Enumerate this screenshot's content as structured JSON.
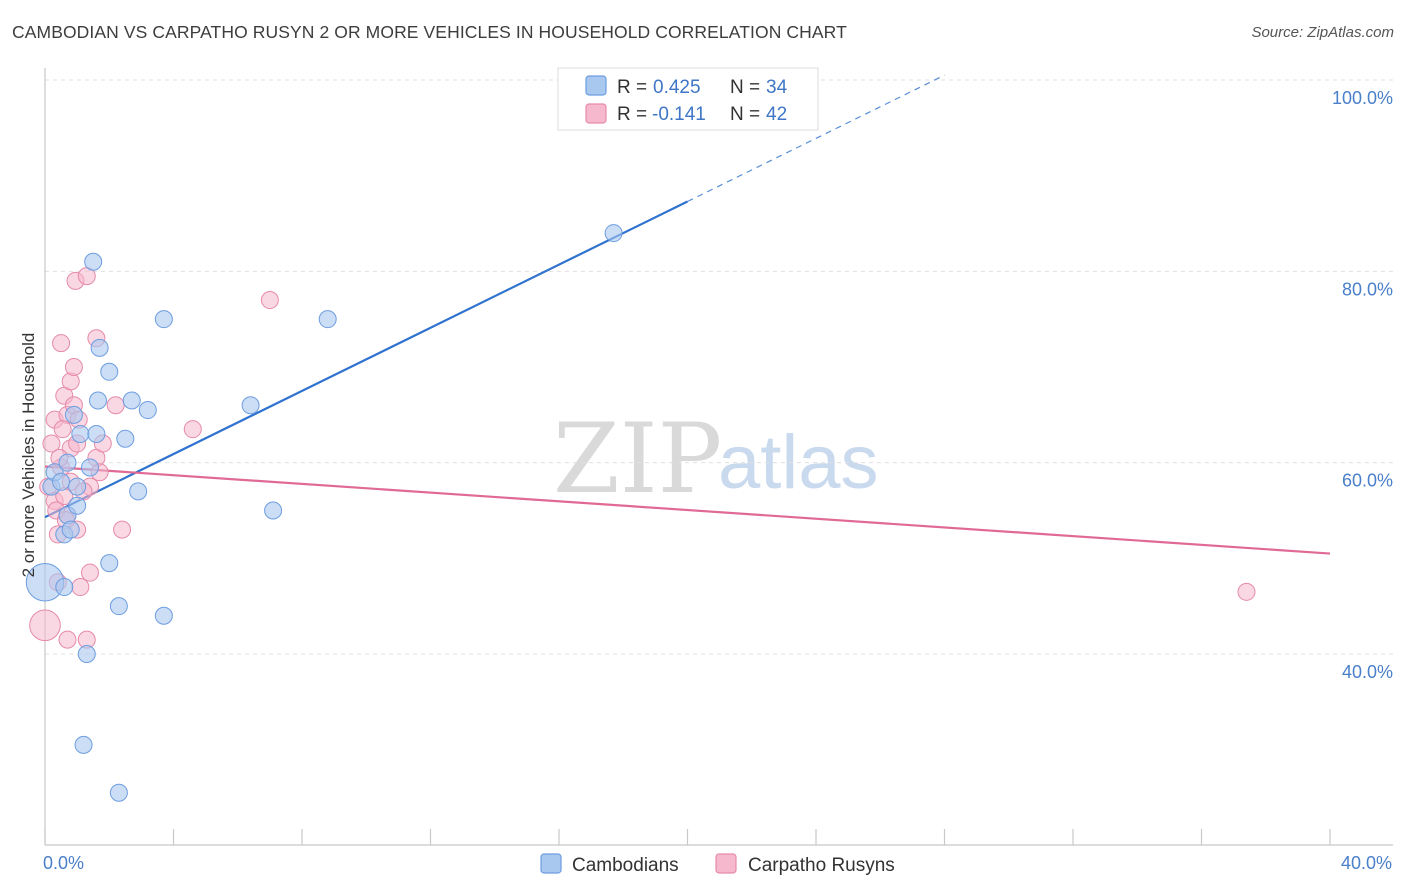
{
  "header": {
    "title": "CAMBODIAN VS CARPATHO RUSYN 2 OR MORE VEHICLES IN HOUSEHOLD CORRELATION CHART",
    "source": "Source: ZipAtlas.com"
  },
  "watermark": {
    "zip": "ZIP",
    "atlas": "atlas"
  },
  "colors": {
    "cambodians_fill": "#a9c8f0",
    "cambodians_stroke": "#6d9de0",
    "cambodians_line": "#2f72cf",
    "rusyn_fill": "#f6b8cc",
    "rusyn_stroke": "#e68aa9",
    "rusyn_line": "#e06a95",
    "tick_text": "#4a7fc9",
    "grid": "#e0e0e0"
  },
  "legend": {
    "rows": [
      {
        "r_label": "R = ",
        "r_value": "0.425",
        "n_label": "N = ",
        "n_value": "34"
      },
      {
        "r_label": "R = ",
        "r_value": "-0.141",
        "n_label": "N = ",
        "n_value": "42"
      }
    ]
  },
  "chart_data": {
    "type": "scatter",
    "title": "CAMBODIAN VS CARPATHO RUSYN 2 OR MORE VEHICLES IN HOUSEHOLD CORRELATION CHART",
    "xlabel": "",
    "ylabel": "2 or more Vehicles in Household",
    "xlim": [
      0,
      40
    ],
    "ylim": [
      20,
      102
    ],
    "x_tick_labels": [
      {
        "value": 0,
        "label": "0.0%"
      },
      {
        "value": 40,
        "label": "40.0%"
      }
    ],
    "x_minor_ticks": [
      0,
      4,
      8,
      12,
      16,
      20,
      24,
      28,
      32,
      36,
      40
    ],
    "y_tick_labels": [
      {
        "value": 40,
        "label": "40.0%"
      },
      {
        "value": 60,
        "label": "60.0%"
      },
      {
        "value": 80,
        "label": "80.0%"
      },
      {
        "value": 100,
        "label": "100.0%"
      }
    ],
    "grid": true,
    "legend_position": "top-center",
    "series": [
      {
        "name": "Cambodians",
        "R": 0.425,
        "N": 34,
        "trend": {
          "x0": 0,
          "y0": 54.3,
          "x1": 20,
          "y1": 87.3,
          "dashed_to_x": 28,
          "dashed_to_y": 100.5
        },
        "points": [
          [
            0.0,
            47.5,
            2.2
          ],
          [
            0.2,
            57.5,
            1
          ],
          [
            0.3,
            59.0,
            1
          ],
          [
            0.5,
            58.0,
            1
          ],
          [
            0.6,
            52.5,
            1
          ],
          [
            0.6,
            47.0,
            1
          ],
          [
            0.7,
            60.0,
            1
          ],
          [
            0.7,
            54.5,
            1
          ],
          [
            0.8,
            53.0,
            1
          ],
          [
            0.9,
            65.0,
            1
          ],
          [
            1.0,
            57.5,
            1
          ],
          [
            1.0,
            55.5,
            1
          ],
          [
            1.1,
            63.0,
            1
          ],
          [
            1.2,
            30.5,
            1
          ],
          [
            1.3,
            40.0,
            1
          ],
          [
            1.4,
            59.5,
            1
          ],
          [
            1.5,
            81.0,
            1
          ],
          [
            1.6,
            63.0,
            1
          ],
          [
            1.65,
            66.5,
            1
          ],
          [
            1.7,
            72.0,
            1
          ],
          [
            2.0,
            69.5,
            1
          ],
          [
            2.0,
            49.5,
            1
          ],
          [
            2.3,
            45.0,
            1
          ],
          [
            2.3,
            25.5,
            1
          ],
          [
            2.5,
            62.5,
            1
          ],
          [
            2.7,
            66.5,
            1
          ],
          [
            2.9,
            57.0,
            1
          ],
          [
            3.2,
            65.5,
            1
          ],
          [
            3.7,
            75.0,
            1
          ],
          [
            3.7,
            44.0,
            1
          ],
          [
            6.4,
            66.0,
            1
          ],
          [
            7.1,
            55.0,
            1
          ],
          [
            8.8,
            75.0,
            1
          ],
          [
            17.7,
            84.0,
            1
          ]
        ]
      },
      {
        "name": "Carpatho Rusyns",
        "R": -0.141,
        "N": 42,
        "trend": {
          "x0": 0,
          "y0": 59.6,
          "x1": 40,
          "y1": 50.5
        },
        "points": [
          [
            0.0,
            43.0,
            1.8
          ],
          [
            0.1,
            57.5,
            1
          ],
          [
            0.2,
            62.0,
            1
          ],
          [
            0.3,
            64.5,
            1
          ],
          [
            0.3,
            56.0,
            1
          ],
          [
            0.4,
            52.5,
            1
          ],
          [
            0.4,
            47.5,
            1
          ],
          [
            0.5,
            72.5,
            1
          ],
          [
            0.5,
            59.5,
            1
          ],
          [
            0.6,
            67.0,
            1
          ],
          [
            0.6,
            56.5,
            1
          ],
          [
            0.7,
            65.0,
            1
          ],
          [
            0.7,
            54.5,
            1
          ],
          [
            0.7,
            41.5,
            1
          ],
          [
            0.8,
            68.5,
            1
          ],
          [
            0.8,
            61.5,
            1
          ],
          [
            0.8,
            58.0,
            1
          ],
          [
            0.9,
            70.0,
            1
          ],
          [
            0.9,
            66.0,
            1
          ],
          [
            1.0,
            62.0,
            1
          ],
          [
            1.0,
            53.0,
            1
          ],
          [
            1.1,
            47.0,
            1
          ],
          [
            0.95,
            79.0,
            1
          ],
          [
            1.3,
            79.5,
            1
          ],
          [
            1.3,
            41.5,
            1
          ],
          [
            1.4,
            57.5,
            1
          ],
          [
            1.4,
            48.5,
            1
          ],
          [
            1.6,
            73.0,
            1
          ],
          [
            1.6,
            60.5,
            1
          ],
          [
            1.7,
            59.0,
            1
          ],
          [
            1.8,
            62.0,
            1
          ],
          [
            2.2,
            66.0,
            1
          ],
          [
            2.4,
            53.0,
            1
          ],
          [
            4.6,
            63.5,
            1
          ],
          [
            7.0,
            77.0,
            1
          ],
          [
            37.4,
            46.5,
            1
          ],
          [
            0.35,
            55.0,
            1
          ],
          [
            0.55,
            63.5,
            1
          ],
          [
            1.2,
            57.0,
            1
          ],
          [
            0.45,
            60.5,
            1
          ],
          [
            0.65,
            54.0,
            1
          ],
          [
            1.05,
            64.5,
            1
          ]
        ]
      }
    ]
  },
  "bottom_legend": [
    {
      "label": "Cambodians"
    },
    {
      "label": "Carpatho Rusyns"
    }
  ]
}
